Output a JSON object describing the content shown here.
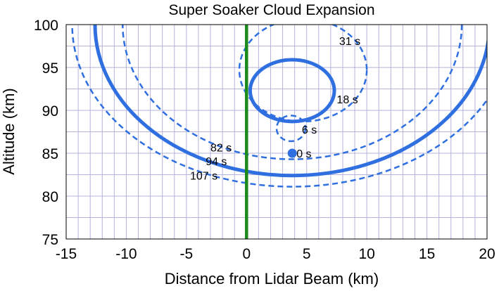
{
  "chart_data": {
    "type": "line",
    "title": "Super Soaker Cloud Expansion",
    "xlabel": "Distance from Lidar Beam (km)",
    "ylabel": "Altitude (km)",
    "xlim": [
      -15,
      20
    ],
    "ylim": [
      75,
      100
    ],
    "xticks": [
      -15,
      -10,
      -5,
      0,
      5,
      10,
      15,
      20
    ],
    "yticks": [
      75,
      80,
      85,
      90,
      95,
      100
    ],
    "xtick_labels": [
      "-15",
      "-10",
      "-5",
      "0",
      "5",
      "10",
      "15",
      "20"
    ],
    "ytick_labels": [
      "75",
      "80",
      "85",
      "90",
      "95",
      "100"
    ],
    "grid": true,
    "colors": {
      "cloud": "#2f6fe0",
      "lidar_beam": "#1a8a1a",
      "grid": "#b4b4dc"
    },
    "lidar_beam_x": 0,
    "release_point": {
      "x": 3.8,
      "y": 85,
      "label": "0 s"
    },
    "series": [
      {
        "label": "6 s",
        "style": "dashed",
        "center": [
          3.7,
          87.9
        ],
        "rx": 1.2,
        "ry": 1.5,
        "label_at": [
          4.6,
          87.8
        ]
      },
      {
        "label": "18 s",
        "style": "solid",
        "center": [
          3.8,
          92.3
        ],
        "rx": 3.5,
        "ry": 3.6,
        "label_at": [
          7.5,
          91.3
        ]
      },
      {
        "label": "31 s",
        "style": "dashed",
        "center": [
          4.7,
          94.7
        ],
        "rx": 5.3,
        "ry": 6.0,
        "label_at": [
          7.7,
          98.1
        ]
      },
      {
        "label": "82 s",
        "style": "dashed",
        "center": [
          3.8,
          100
        ],
        "rx": 14.1,
        "ry": 15.7,
        "label_at": [
          -3.0,
          85.7
        ]
      },
      {
        "label": "94 s",
        "style": "solid",
        "center": [
          3.8,
          100
        ],
        "rx": 16.4,
        "ry": 17.6,
        "label_at": [
          -3.4,
          84.1
        ]
      },
      {
        "label": "107 s",
        "style": "dashed",
        "center": [
          3.8,
          100
        ],
        "rx": 18.3,
        "ry": 18.9,
        "label_at": [
          -4.7,
          82.4
        ]
      }
    ]
  }
}
